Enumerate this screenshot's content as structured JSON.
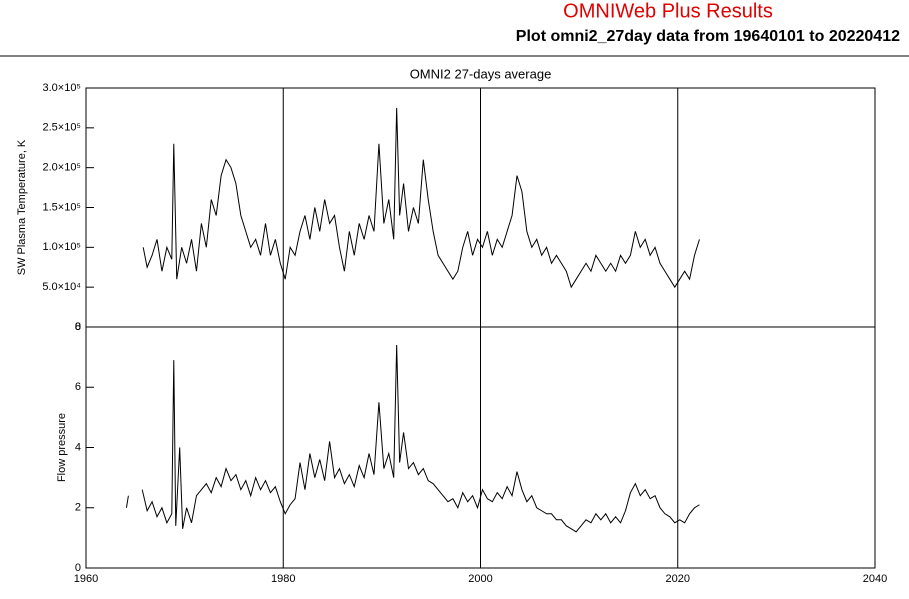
{
  "header": {
    "title": "OMNIWeb Plus Results",
    "subtitle": "Plot omni2_27day data from 19640101 to 20220412"
  },
  "chart_data": [
    {
      "type": "line",
      "title": "OMNI2 27-days average",
      "y_label": "SW Plasma Temperature, K",
      "color": "#000000",
      "grid": true,
      "xlim": [
        1960,
        2040
      ],
      "xticks": [
        1960,
        1980,
        2000,
        2020,
        2040
      ],
      "ylim": [
        0,
        300000
      ],
      "yticks": [
        0,
        {
          "value": 50000,
          "label": "5.0×10⁴"
        },
        {
          "value": 100000,
          "label": "1.0×10⁵"
        },
        {
          "value": 150000,
          "label": "1.5×10⁵"
        },
        {
          "value": 200000,
          "label": "2.0×10⁵"
        },
        {
          "value": 250000,
          "label": "2.5×10⁵"
        },
        {
          "value": 300000,
          "label": "3.0×10⁵"
        }
      ],
      "x": [
        1965.8,
        1966.2,
        1966.7,
        1967.2,
        1967.7,
        1968.2,
        1968.7,
        1968.9,
        1969.2,
        1969.7,
        1970.2,
        1970.7,
        1971.2,
        1971.7,
        1972.2,
        1972.7,
        1973.2,
        1973.7,
        1974.2,
        1974.7,
        1975.2,
        1975.7,
        1976.2,
        1976.7,
        1977.2,
        1977.7,
        1978.2,
        1978.7,
        1979.2,
        1979.7,
        1980.2,
        1980.7,
        1981.2,
        1981.7,
        1982.2,
        1982.7,
        1983.2,
        1983.7,
        1984.2,
        1984.7,
        1985.2,
        1985.7,
        1986.2,
        1986.7,
        1987.2,
        1987.7,
        1988.2,
        1988.7,
        1989.2,
        1989.7,
        1990.2,
        1990.7,
        1991.2,
        1991.5,
        1991.8,
        1992.2,
        1992.7,
        1993.2,
        1993.7,
        1994.2,
        1994.7,
        1995.2,
        1995.7,
        1996.2,
        1996.7,
        1997.2,
        1997.7,
        1998.2,
        1998.7,
        1999.2,
        1999.7,
        2000.2,
        2000.7,
        2001.2,
        2001.7,
        2002.2,
        2002.7,
        2003.2,
        2003.7,
        2004.2,
        2004.7,
        2005.2,
        2005.7,
        2006.2,
        2006.7,
        2007.2,
        2007.7,
        2008.2,
        2008.7,
        2009.2,
        2009.7,
        2010.2,
        2010.7,
        2011.2,
        2011.7,
        2012.2,
        2012.7,
        2013.2,
        2013.7,
        2014.2,
        2014.7,
        2015.2,
        2015.7,
        2016.2,
        2016.7,
        2017.2,
        2017.7,
        2018.2,
        2018.7,
        2019.2,
        2019.7,
        2020.2,
        2020.7,
        2021.2,
        2021.7,
        2022.2
      ],
      "values": [
        100000,
        75000,
        90000,
        110000,
        70000,
        100000,
        85000,
        230000,
        60000,
        100000,
        80000,
        110000,
        70000,
        130000,
        100000,
        160000,
        140000,
        190000,
        210000,
        200000,
        180000,
        140000,
        120000,
        100000,
        110000,
        90000,
        130000,
        90000,
        110000,
        80000,
        60000,
        100000,
        90000,
        120000,
        140000,
        110000,
        150000,
        120000,
        160000,
        130000,
        140000,
        100000,
        70000,
        120000,
        90000,
        130000,
        110000,
        140000,
        120000,
        230000,
        130000,
        160000,
        110000,
        275000,
        140000,
        180000,
        120000,
        150000,
        130000,
        210000,
        160000,
        120000,
        90000,
        80000,
        70000,
        60000,
        70000,
        100000,
        120000,
        90000,
        110000,
        100000,
        120000,
        90000,
        110000,
        100000,
        120000,
        140000,
        190000,
        170000,
        120000,
        100000,
        110000,
        90000,
        100000,
        80000,
        90000,
        80000,
        70000,
        50000,
        60000,
        70000,
        80000,
        70000,
        90000,
        80000,
        70000,
        80000,
        70000,
        90000,
        80000,
        90000,
        120000,
        100000,
        110000,
        90000,
        100000,
        80000,
        70000,
        60000,
        50000,
        60000,
        70000,
        60000,
        90000,
        110000
      ]
    },
    {
      "type": "line",
      "y_label": "Flow pressure",
      "color": "#000000",
      "grid": true,
      "xlim": [
        1960,
        2040
      ],
      "xticks": [
        1960,
        1980,
        2000,
        2020,
        2040
      ],
      "ylim": [
        0,
        8
      ],
      "yticks": [
        0,
        2,
        4,
        6,
        8
      ],
      "x": [
        1964.1,
        1964.3,
        1965.0,
        1965.7,
        1966.2,
        1966.7,
        1967.2,
        1967.7,
        1968.2,
        1968.7,
        1968.9,
        1969.1,
        1969.5,
        1969.8,
        1970.2,
        1970.7,
        1971.2,
        1971.7,
        1972.2,
        1972.7,
        1973.2,
        1973.7,
        1974.2,
        1974.7,
        1975.2,
        1975.7,
        1976.2,
        1976.7,
        1977.2,
        1977.7,
        1978.2,
        1978.7,
        1979.2,
        1979.7,
        1980.2,
        1980.7,
        1981.2,
        1981.7,
        1982.2,
        1982.7,
        1983.2,
        1983.7,
        1984.2,
        1984.7,
        1985.2,
        1985.7,
        1986.2,
        1986.7,
        1987.2,
        1987.7,
        1988.2,
        1988.7,
        1989.2,
        1989.7,
        1990.2,
        1990.7,
        1991.2,
        1991.5,
        1991.8,
        1992.2,
        1992.7,
        1993.2,
        1993.7,
        1994.2,
        1994.7,
        1995.2,
        1995.7,
        1996.2,
        1996.7,
        1997.2,
        1997.7,
        1998.2,
        1998.7,
        1999.2,
        1999.7,
        2000.2,
        2000.7,
        2001.2,
        2001.7,
        2002.2,
        2002.7,
        2003.2,
        2003.7,
        2004.2,
        2004.7,
        2005.2,
        2005.7,
        2006.2,
        2006.7,
        2007.2,
        2007.7,
        2008.2,
        2008.7,
        2009.2,
        2009.7,
        2010.2,
        2010.7,
        2011.2,
        2011.7,
        2012.2,
        2012.7,
        2013.2,
        2013.7,
        2014.2,
        2014.7,
        2015.2,
        2015.7,
        2016.2,
        2016.7,
        2017.2,
        2017.7,
        2018.2,
        2018.7,
        2019.2,
        2019.7,
        2020.2,
        2020.7,
        2021.2,
        2021.7,
        2022.2
      ],
      "values": [
        2.0,
        2.4,
        null,
        2.6,
        1.9,
        2.2,
        1.7,
        2.0,
        1.5,
        1.8,
        6.9,
        1.4,
        4.0,
        1.3,
        2.0,
        1.5,
        2.4,
        2.6,
        2.8,
        2.5,
        3.0,
        2.7,
        3.3,
        2.9,
        3.1,
        2.6,
        2.9,
        2.4,
        3.0,
        2.6,
        2.9,
        2.5,
        2.7,
        2.2,
        1.8,
        2.1,
        2.3,
        3.5,
        2.6,
        3.8,
        3.0,
        3.6,
        2.9,
        4.2,
        3.0,
        3.3,
        2.8,
        3.1,
        2.7,
        3.4,
        3.0,
        3.8,
        3.1,
        5.5,
        3.3,
        3.8,
        3.0,
        7.4,
        3.5,
        4.5,
        3.3,
        3.5,
        3.1,
        3.3,
        2.9,
        2.8,
        2.6,
        2.4,
        2.2,
        2.3,
        2.0,
        2.5,
        2.2,
        2.4,
        2.0,
        2.6,
        2.3,
        2.2,
        2.5,
        2.3,
        2.7,
        2.4,
        3.2,
        2.6,
        2.2,
        2.4,
        2.0,
        1.9,
        1.8,
        1.8,
        1.6,
        1.6,
        1.4,
        1.3,
        1.2,
        1.4,
        1.6,
        1.5,
        1.8,
        1.6,
        1.8,
        1.5,
        1.7,
        1.5,
        1.9,
        2.5,
        2.8,
        2.4,
        2.6,
        2.3,
        2.4,
        2.0,
        1.8,
        1.7,
        1.5,
        1.6,
        1.5,
        1.8,
        2.0,
        2.1
      ]
    }
  ]
}
